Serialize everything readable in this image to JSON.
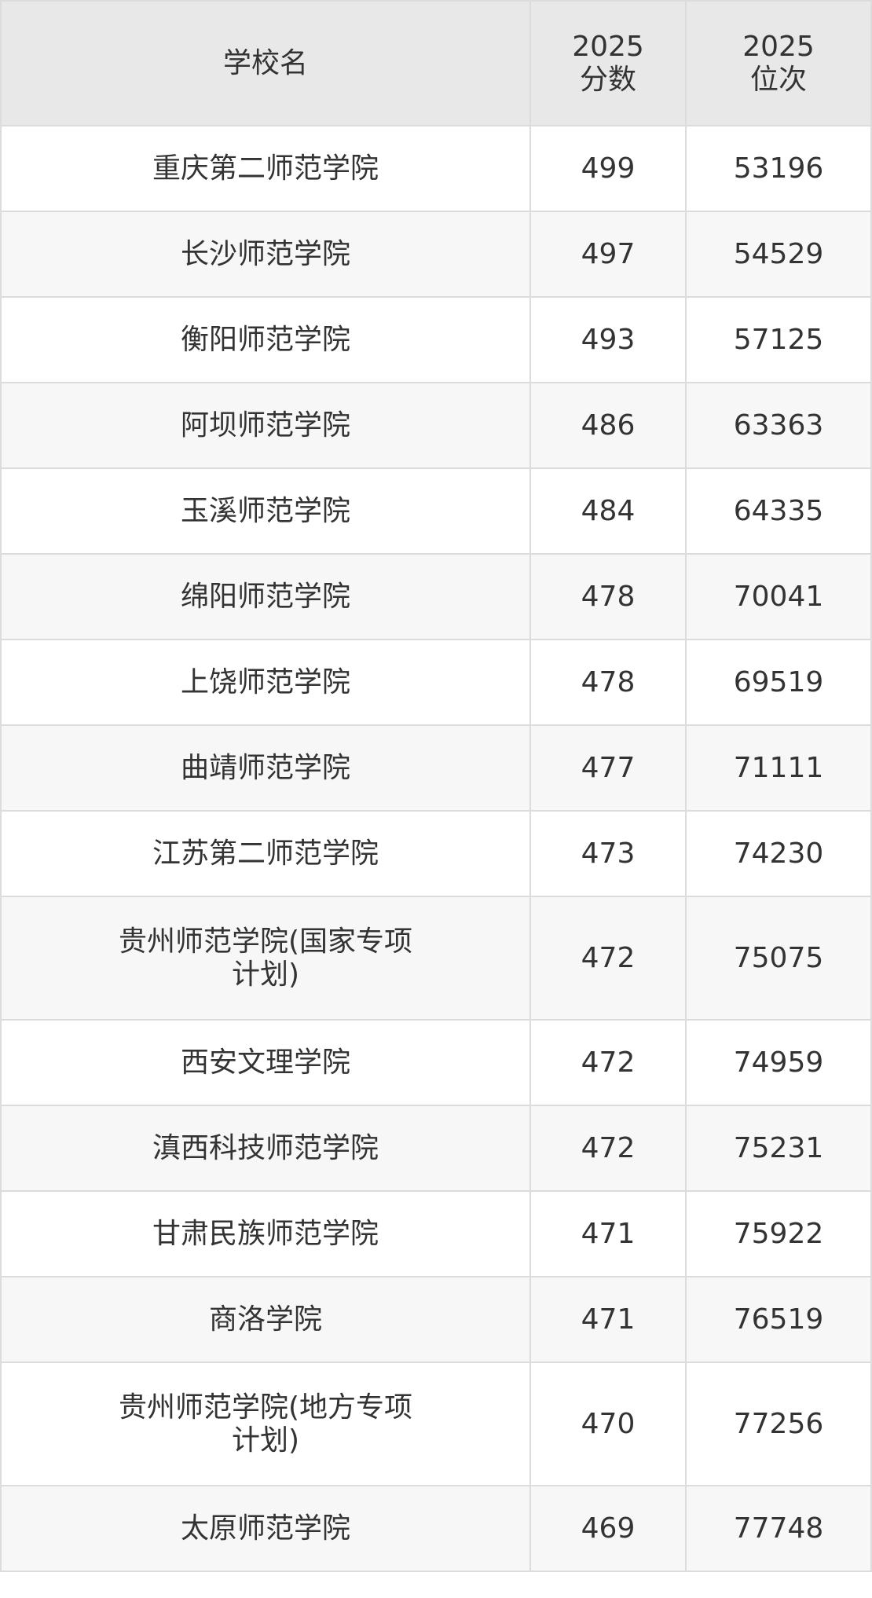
{
  "headers": {
    "school": "学校名",
    "score": "2025\n分数",
    "rank": "2025\n位次"
  },
  "rows": [
    {
      "school": "重庆第二师范学院",
      "score": "499",
      "rank": "53196"
    },
    {
      "school": "长沙师范学院",
      "score": "497",
      "rank": "54529"
    },
    {
      "school": "衡阳师范学院",
      "score": "493",
      "rank": "57125"
    },
    {
      "school": "阿坝师范学院",
      "score": "486",
      "rank": "63363"
    },
    {
      "school": "玉溪师范学院",
      "score": "484",
      "rank": "64335"
    },
    {
      "school": "绵阳师范学院",
      "score": "478",
      "rank": "70041"
    },
    {
      "school": "上饶师范学院",
      "score": "478",
      "rank": "69519"
    },
    {
      "school": "曲靖师范学院",
      "score": "477",
      "rank": "71111"
    },
    {
      "school": "江苏第二师范学院",
      "score": "473",
      "rank": "74230"
    },
    {
      "school": "贵州师范学院(国家专项计划)",
      "score": "472",
      "rank": "75075"
    },
    {
      "school": "西安文理学院",
      "score": "472",
      "rank": "74959"
    },
    {
      "school": "滇西科技师范学院",
      "score": "472",
      "rank": "75231"
    },
    {
      "school": "甘肃民族师范学院",
      "score": "471",
      "rank": "75922"
    },
    {
      "school": "商洛学院",
      "score": "471",
      "rank": "76519"
    },
    {
      "school": "贵州师范学院(地方专项计划)",
      "score": "470",
      "rank": "77256"
    },
    {
      "school": "太原师范学院",
      "score": "469",
      "rank": "77748"
    }
  ]
}
